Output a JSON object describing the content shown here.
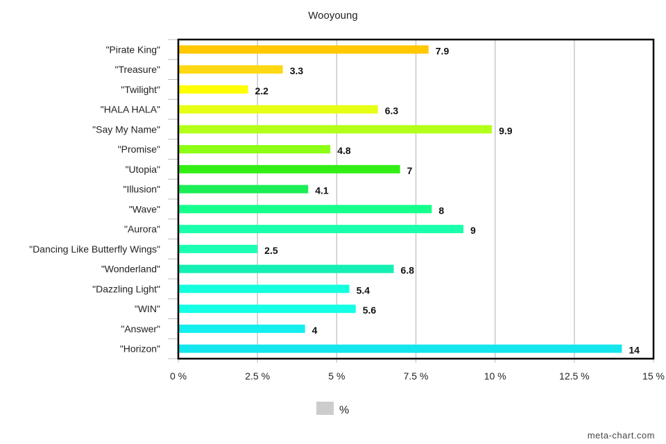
{
  "chart_data": {
    "type": "bar",
    "orientation": "horizontal",
    "title": "Wooyoung",
    "categories": [
      "\"Pirate King\"",
      "\"Treasure\"",
      "\"Twilight\"",
      "\"HALA HALA\"",
      "\"Say My Name\"",
      "\"Promise\"",
      "\"Utopia\"",
      "\"Illusion\"",
      "\"Wave\"",
      "\"Aurora\"",
      "\"Dancing Like Butterfly Wings\"",
      "\"Wonderland\"",
      "\"Dazzling Light\"",
      "\"WIN\"",
      "\"Answer\"",
      "\"Horizon\""
    ],
    "values": [
      7.9,
      3.3,
      2.2,
      6.3,
      9.9,
      4.8,
      7,
      4.1,
      8,
      9,
      2.5,
      6.8,
      5.4,
      5.6,
      4,
      14
    ],
    "value_labels": [
      "7.9",
      "3.3",
      "2.2",
      "6.3",
      "9.9",
      "4.8",
      "7",
      "4.1",
      "8",
      "9",
      "2.5",
      "6.8",
      "5.4",
      "5.6",
      "4",
      "14"
    ],
    "colors": [
      "#ffc800",
      "#ffd814",
      "#ffff00",
      "#e6ff14",
      "#b3ff1a",
      "#8cff14",
      "#33ee14",
      "#1aee55",
      "#14ff8c",
      "#1affaa",
      "#1affb3",
      "#14efb3",
      "#14ffdd",
      "#14ffe6",
      "#14eeee",
      "#14e6ee"
    ],
    "xlim": [
      0,
      15
    ],
    "xticks": [
      0,
      2.5,
      5,
      7.5,
      10,
      12.5,
      15
    ],
    "xtick_labels": [
      "0 %",
      "2.5 %",
      "5 %",
      "7.5 %",
      "10 %",
      "12.5 %",
      "15 %"
    ],
    "grid": true,
    "legend": {
      "label": "%",
      "placement": "bottom-center",
      "swatch_color": "#cccccc"
    }
  },
  "credit": "meta-chart.com"
}
